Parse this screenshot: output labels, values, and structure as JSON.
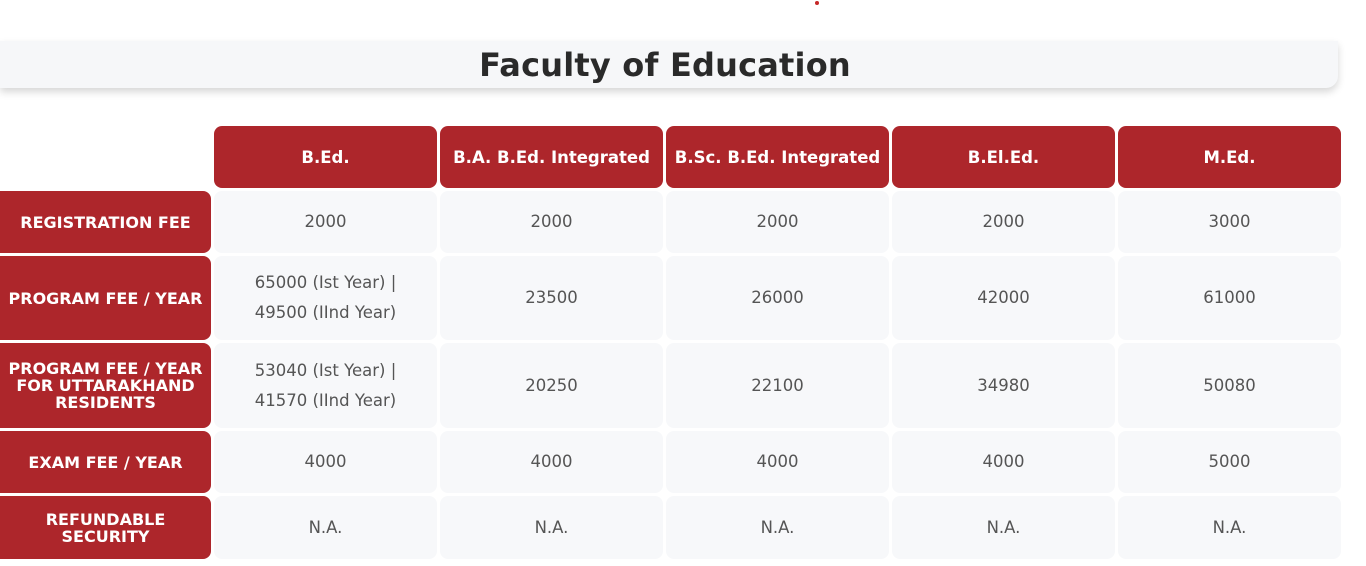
{
  "page": {
    "title": "Faculty of Education"
  },
  "table": {
    "columns": [
      "B.Ed.",
      "B.A. B.Ed. Integrated",
      "B.Sc. B.Ed. Integrated",
      "B.El.Ed.",
      "M.Ed."
    ],
    "rows": [
      {
        "label": "REGISTRATION FEE",
        "values": [
          "2000",
          "2000",
          "2000",
          "2000",
          "3000"
        ]
      },
      {
        "label": "PROGRAM FEE / YEAR",
        "values": [
          "65000 (Ist Year) | 49500 (IInd Year)",
          "23500",
          "26000",
          "42000",
          "61000"
        ]
      },
      {
        "label": "PROGRAM FEE / YEAR FOR UTTARAKHAND RESIDENTS",
        "values": [
          "53040 (Ist Year) | 41570 (IInd Year)",
          "20250",
          "22100",
          "34980",
          "50080"
        ]
      },
      {
        "label": "EXAM FEE / YEAR",
        "values": [
          "4000",
          "4000",
          "4000",
          "4000",
          "5000"
        ]
      },
      {
        "label": "REFUNDABLE SECURITY",
        "values": [
          "N.A.",
          "N.A.",
          "N.A.",
          "N.A.",
          "N.A."
        ]
      }
    ]
  },
  "colors": {
    "accent": "#ad262b",
    "cell_bg": "#f7f8fa",
    "title_bg": "#f6f7f9"
  }
}
